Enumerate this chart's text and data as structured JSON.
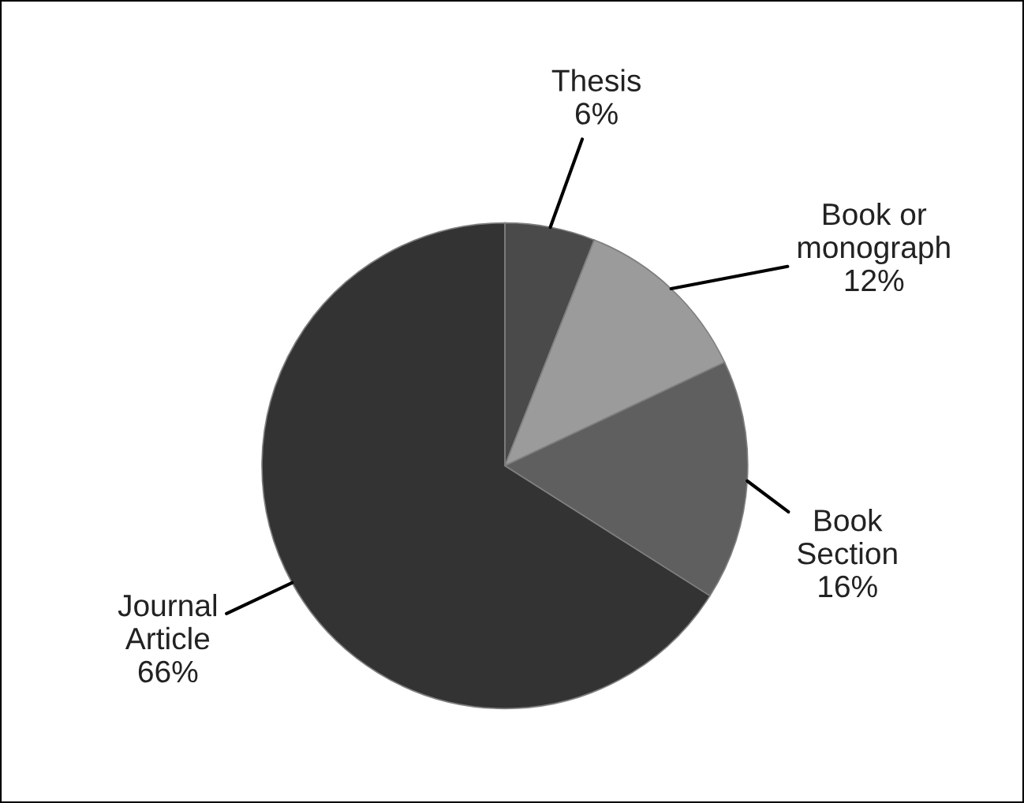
{
  "chart_data": {
    "type": "pie",
    "categories": [
      "Thesis",
      "Book or\nmonograph",
      "Book\nSection",
      "Journal\nArticle"
    ],
    "values": [
      6,
      12,
      16,
      66
    ],
    "colors": [
      "#4a4a4a",
      "#9b9b9b",
      "#5f5f5f",
      "#333333"
    ],
    "value_labels": [
      "6%",
      "12%",
      "16%",
      "66%"
    ],
    "legend": false
  }
}
